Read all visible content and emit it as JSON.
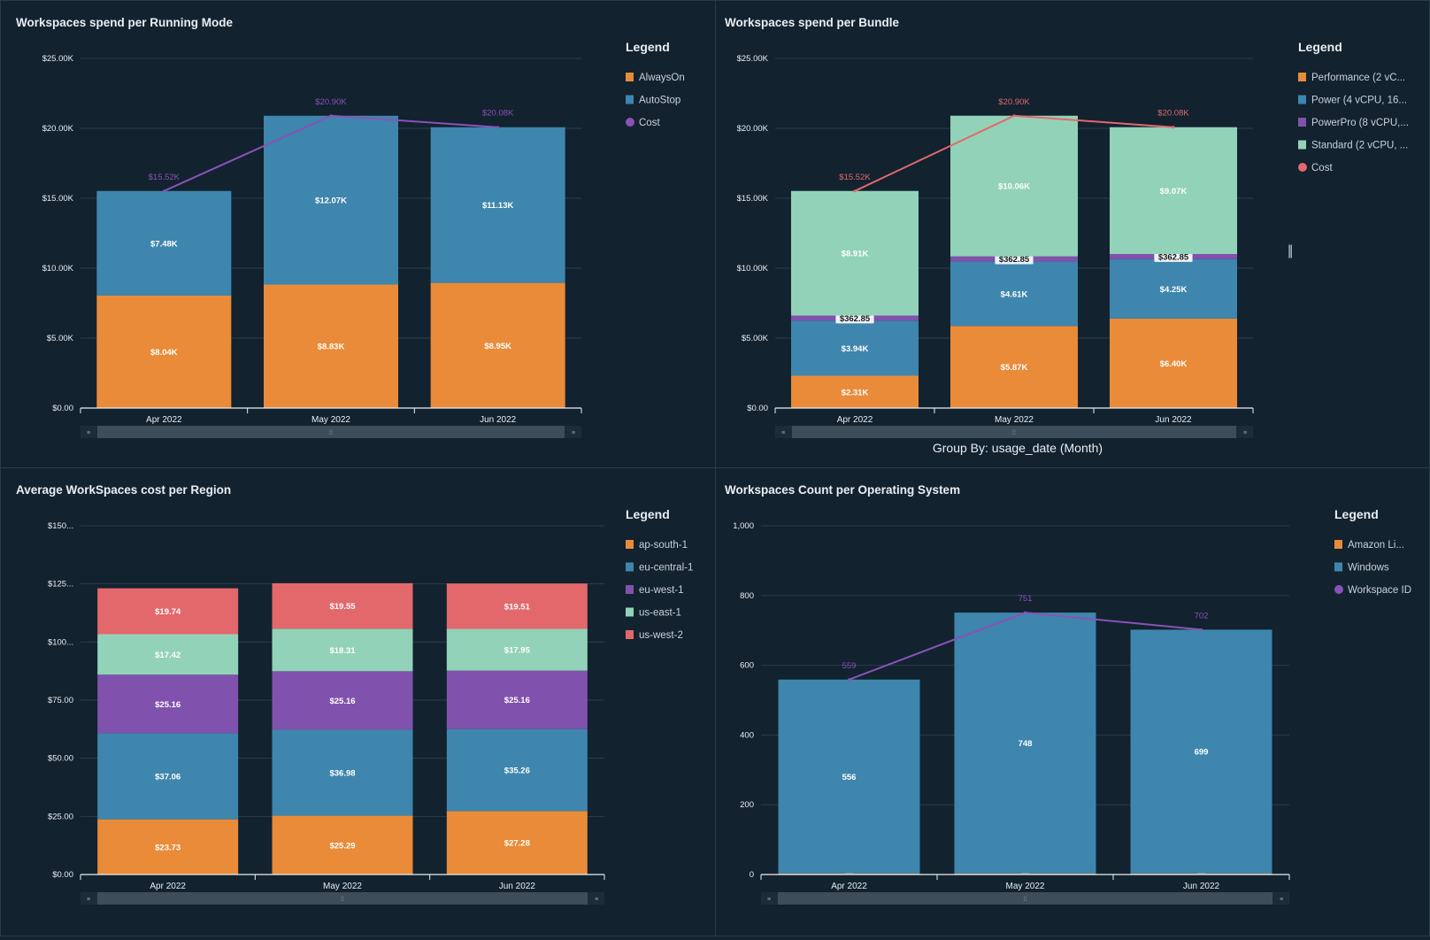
{
  "chart_data": [
    {
      "type": "bar",
      "stacked": true,
      "title": "Workspaces spend per Running Mode",
      "legend_title": "Legend",
      "legend_position": "right",
      "grid": true,
      "categories": [
        "Apr 2022",
        "May 2022",
        "Jun 2022"
      ],
      "ylim": [
        0,
        25000
      ],
      "yticks": [
        0,
        5000,
        10000,
        15000,
        20000,
        25000
      ],
      "ytick_labels": [
        "$0.00",
        "$5.00K",
        "$10.00K",
        "$15.00K",
        "$20.00K",
        "$25.00K"
      ],
      "series": [
        {
          "name": "AlwaysOn",
          "color": "#E98B39",
          "values": [
            8040,
            8830,
            8950
          ],
          "labels": [
            "$8.04K",
            "$8.83K",
            "$8.95K"
          ]
        },
        {
          "name": "AutoStop",
          "color": "#3E86AD",
          "values": [
            7480,
            12070,
            11130
          ],
          "labels": [
            "$7.48K",
            "$12.07K",
            "$11.13K"
          ]
        }
      ],
      "line": {
        "name": "Cost",
        "color": "#8A52B8",
        "values": [
          15520,
          20900,
          20080
        ],
        "labels": [
          "$15.52K",
          "$20.90K",
          "$20.08K"
        ]
      }
    },
    {
      "type": "bar",
      "stacked": true,
      "title": "Workspaces spend per Bundle",
      "legend_title": "Legend",
      "legend_position": "right",
      "grid": true,
      "categories": [
        "Apr 2022",
        "May 2022",
        "Jun 2022"
      ],
      "ylim": [
        0,
        25000
      ],
      "yticks": [
        0,
        5000,
        10000,
        15000,
        20000,
        25000
      ],
      "ytick_labels": [
        "$0.00",
        "$5.00K",
        "$10.00K",
        "$15.00K",
        "$20.00K",
        "$25.00K"
      ],
      "series": [
        {
          "name": "Performance (2 vC...",
          "color": "#E98B39",
          "values": [
            2310,
            5870,
            6400
          ],
          "labels": [
            "$2.31K",
            "$5.87K",
            "$6.40K"
          ]
        },
        {
          "name": "Power (4 vCPU, 16...",
          "color": "#3E86AD",
          "values": [
            3940,
            4610,
            4250
          ],
          "labels": [
            "$3.94K",
            "$4.61K",
            "$4.25K"
          ]
        },
        {
          "name": "PowerPro (8 vCPU,...",
          "color": "#8052AD",
          "values": [
            362.85,
            362.85,
            362.85
          ],
          "labels": [
            "$362.85",
            "$362.85",
            "$362.85"
          ]
        },
        {
          "name": "Standard (2 vCPU, ...",
          "color": "#92D2B9",
          "values": [
            8910,
            10060,
            9070
          ],
          "labels": [
            "$8.91K",
            "$10.06K",
            "$9.07K"
          ]
        }
      ],
      "line": {
        "name": "Cost",
        "color": "#E3686C",
        "values": [
          15520,
          20900,
          20080
        ],
        "labels": [
          "$15.52K",
          "$20.90K",
          "$20.08K"
        ]
      },
      "footer": "Group By: usage_date (Month)"
    },
    {
      "type": "bar",
      "stacked": true,
      "title": "Average WorkSpaces cost per Region",
      "legend_title": "Legend",
      "legend_position": "right",
      "grid": true,
      "categories": [
        "Apr 2022",
        "May 2022",
        "Jun 2022"
      ],
      "ylim": [
        0,
        150
      ],
      "yticks": [
        0,
        25,
        50,
        75,
        100,
        125,
        150
      ],
      "ytick_labels": [
        "$0.00",
        "$25.00",
        "$50.00",
        "$75.00",
        "$100...",
        "$125...",
        "$150..."
      ],
      "series": [
        {
          "name": "ap-south-1",
          "color": "#E98B39",
          "values": [
            23.73,
            25.29,
            27.28
          ],
          "labels": [
            "$23.73",
            "$25.29",
            "$27.28"
          ]
        },
        {
          "name": "eu-central-1",
          "color": "#3E86AD",
          "values": [
            37.06,
            36.98,
            35.26
          ],
          "labels": [
            "$37.06",
            "$36.98",
            "$35.26"
          ]
        },
        {
          "name": "eu-west-1",
          "color": "#8052AD",
          "values": [
            25.16,
            25.16,
            25.16
          ],
          "labels": [
            "$25.16",
            "$25.16",
            "$25.16"
          ]
        },
        {
          "name": "us-east-1",
          "color": "#92D2B9",
          "values": [
            17.42,
            18.31,
            17.95
          ],
          "labels": [
            "$17.42",
            "$18.31",
            "$17.95"
          ]
        },
        {
          "name": "us-west-2",
          "color": "#E3686C",
          "values": [
            19.74,
            19.55,
            19.51
          ],
          "labels": [
            "$19.74",
            "$19.55",
            "$19.51"
          ]
        }
      ]
    },
    {
      "type": "bar",
      "stacked": true,
      "title": "Workspaces Count per Operating System",
      "legend_title": "Legend",
      "legend_position": "right",
      "grid": true,
      "categories": [
        "Apr 2022",
        "May 2022",
        "Jun 2022"
      ],
      "ylim": [
        0,
        1000
      ],
      "yticks": [
        0,
        200,
        400,
        600,
        800,
        1000
      ],
      "ytick_labels": [
        "0",
        "200",
        "400",
        "600",
        "800",
        "1,000"
      ],
      "series": [
        {
          "name": "Amazon Li...",
          "color": "#E98B39",
          "values": [
            3,
            3,
            3
          ],
          "labels": [
            "3",
            "3",
            "3"
          ]
        },
        {
          "name": "Windows",
          "color": "#3E86AD",
          "values": [
            556,
            748,
            699
          ],
          "labels": [
            "556",
            "748",
            "699"
          ]
        }
      ],
      "line": {
        "name": "Workspace ID",
        "color": "#8A52B8",
        "values": [
          559,
          751,
          702
        ],
        "labels": [
          "559",
          "751",
          "702"
        ]
      }
    }
  ]
}
